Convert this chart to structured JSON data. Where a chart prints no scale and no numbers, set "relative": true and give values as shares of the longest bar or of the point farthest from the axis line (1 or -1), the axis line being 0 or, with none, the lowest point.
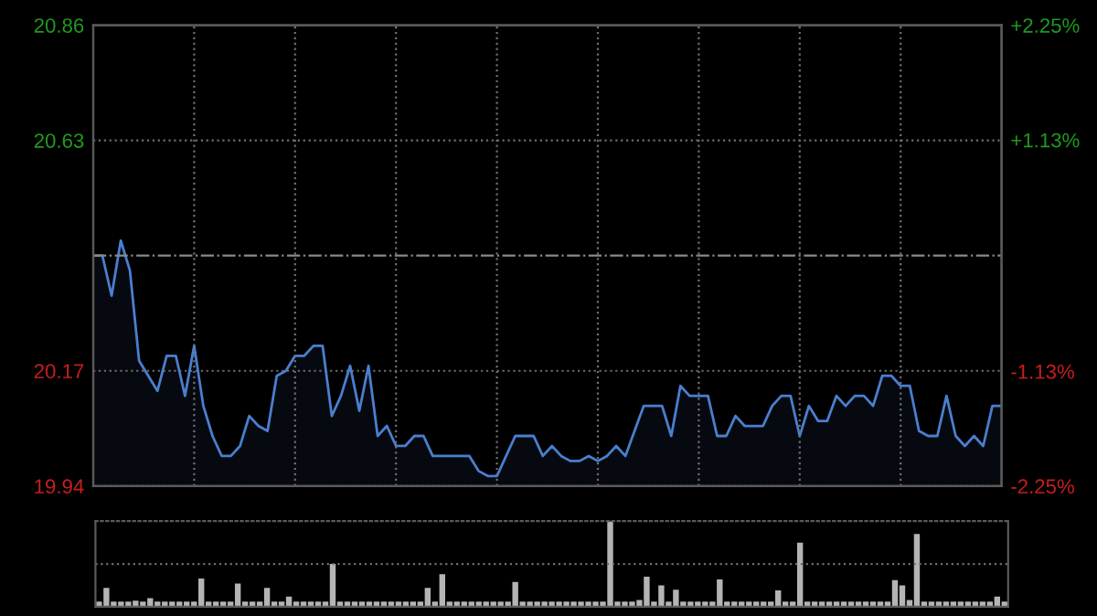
{
  "chart_data": [
    {
      "type": "area",
      "categories": [
        null,
        null,
        null,
        null,
        null,
        null,
        null,
        null,
        null,
        null,
        null,
        null,
        null,
        null,
        null,
        null,
        null,
        null,
        null,
        null,
        null,
        null,
        null,
        null,
        null,
        null,
        null,
        null,
        null,
        null,
        null,
        null,
        null,
        null,
        null,
        null,
        null,
        null,
        null,
        null,
        null,
        null,
        null,
        null,
        null,
        null,
        null,
        null,
        null,
        null,
        null,
        null,
        null,
        null,
        null,
        null,
        null,
        null,
        null,
        null,
        null,
        null,
        null,
        null,
        null,
        null,
        null,
        null,
        null,
        null,
        null,
        null,
        null,
        null,
        null,
        null,
        null,
        null,
        null,
        null,
        null,
        null,
        null,
        null,
        null,
        null,
        null,
        null,
        null,
        null,
        null,
        null,
        null,
        null,
        null,
        null,
        null,
        null,
        null,
        null
      ],
      "series": [
        {
          "color": "#4a7fd0",
          "values": [
            20.4,
            20.4,
            20.32,
            20.43,
            20.37,
            20.19,
            20.16,
            20.13,
            20.2,
            20.2,
            20.12,
            20.22,
            20.1,
            20.04,
            20.0,
            20.0,
            20.02,
            20.08,
            20.06,
            20.05,
            20.16,
            20.17,
            20.2,
            20.2,
            20.22,
            20.22,
            20.08,
            20.12,
            20.18,
            20.09,
            20.18,
            20.04,
            20.06,
            20.02,
            20.02,
            20.04,
            20.04,
            20.0,
            20.0,
            20.0,
            20.0,
            20.0,
            19.97,
            19.96,
            19.96,
            20.0,
            20.04,
            20.04,
            20.04,
            20.0,
            20.02,
            20.0,
            19.99,
            19.99,
            20.0,
            19.99,
            20.0,
            20.02,
            20.0,
            20.05,
            20.1,
            20.1,
            20.1,
            20.04,
            20.14,
            20.12,
            20.12,
            20.12,
            20.04,
            20.04,
            20.08,
            20.06,
            20.06,
            20.06,
            20.1,
            20.12,
            20.12,
            20.04,
            20.1,
            20.07,
            20.07,
            20.12,
            20.1,
            20.12,
            20.12,
            20.1,
            20.16,
            20.16,
            20.14,
            20.14,
            20.05,
            20.04,
            20.04,
            20.12,
            20.04,
            20.02,
            20.04,
            20.02,
            20.1,
            20.1
          ]
        }
      ],
      "ylim": [
        19.94,
        20.86
      ],
      "yticks": [
        19.94,
        20.17,
        20.63,
        20.86
      ],
      "y2lim": [
        -2.25,
        2.25
      ],
      "y2ticks": [
        {
          "value": -2.25,
          "label": "-2.25%"
        },
        {
          "value": -1.13,
          "label": "-1.13%"
        },
        {
          "value": 1.13,
          "label": "+1.13%"
        },
        {
          "value": 2.25,
          "label": "+2.25%"
        }
      ],
      "ref_lines": [
        {
          "axis": "y",
          "value": 20.4,
          "line_style": "dashdot"
        }
      ],
      "grid": true,
      "tick_labels": "y"
    },
    {
      "type": "bar",
      "relative": true,
      "color": "#b4b4b4",
      "tick_labels": false,
      "ref_lines": [
        {
          "axis": "y",
          "value": 0.5,
          "line_style": "dotted"
        }
      ],
      "categories": [
        null,
        null,
        null,
        null,
        null,
        null,
        null,
        null,
        null,
        null,
        null,
        null,
        null,
        null,
        null,
        null,
        null,
        null,
        null,
        null,
        null,
        null,
        null,
        null,
        null,
        null,
        null,
        null,
        null,
        null,
        null,
        null,
        null,
        null,
        null,
        null,
        null,
        null,
        null,
        null,
        null,
        null,
        null,
        null,
        null,
        null,
        null,
        null,
        null,
        null,
        null,
        null,
        null,
        null,
        null,
        null,
        null,
        null,
        null,
        null,
        null,
        null,
        null,
        null,
        null,
        null,
        null,
        null,
        null,
        null,
        null,
        null,
        null,
        null,
        null,
        null,
        null,
        null,
        null,
        null,
        null,
        null,
        null,
        null,
        null,
        null,
        null,
        null,
        null,
        null,
        null,
        null,
        null,
        null,
        null,
        null,
        null,
        null,
        null,
        null,
        null,
        null,
        null,
        null,
        null,
        null,
        null,
        null,
        null,
        null,
        null,
        null,
        null,
        null,
        null,
        null,
        null,
        null,
        null,
        null,
        null,
        null,
        null,
        null,
        null
      ],
      "values": [
        0.06,
        0.22,
        0.06,
        0.06,
        0.06,
        0.07,
        0.06,
        0.1,
        0.06,
        0.06,
        0.06,
        0.06,
        0.06,
        0.06,
        0.33,
        0.06,
        0.06,
        0.06,
        0.06,
        0.27,
        0.06,
        0.06,
        0.06,
        0.22,
        0.06,
        0.06,
        0.12,
        0.06,
        0.06,
        0.06,
        0.06,
        0.06,
        0.5,
        0.06,
        0.06,
        0.06,
        0.06,
        0.06,
        0.06,
        0.06,
        0.06,
        0.06,
        0.06,
        0.06,
        0.06,
        0.22,
        0.06,
        0.38,
        0.06,
        0.06,
        0.06,
        0.06,
        0.06,
        0.06,
        0.06,
        0.06,
        0.06,
        0.29,
        0.06,
        0.06,
        0.06,
        0.06,
        0.06,
        0.06,
        0.06,
        0.06,
        0.06,
        0.06,
        0.06,
        0.06,
        1.0,
        0.06,
        0.06,
        0.06,
        0.08,
        0.35,
        0.06,
        0.25,
        0.06,
        0.2,
        0.06,
        0.06,
        0.06,
        0.06,
        0.06,
        0.32,
        0.06,
        0.06,
        0.06,
        0.06,
        0.06,
        0.06,
        0.06,
        0.19,
        0.06,
        0.06,
        0.75,
        0.06,
        0.06,
        0.06,
        0.06,
        0.06,
        0.06,
        0.06,
        0.06,
        0.06,
        0.06,
        0.06,
        0.06,
        0.31,
        0.25,
        0.08,
        0.85,
        0.06,
        0.06,
        0.06,
        0.06,
        0.06,
        0.06,
        0.06,
        0.06,
        0.06,
        0.06,
        0.12,
        0.06
      ]
    }
  ]
}
